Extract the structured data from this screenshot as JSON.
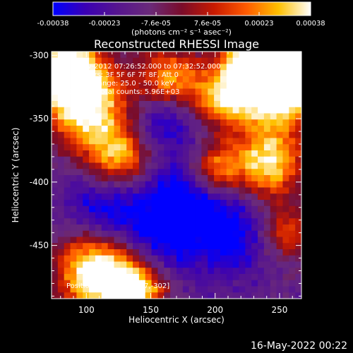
{
  "chart_data": {
    "type": "heatmap",
    "title": "Reconstructed RHESSI Image",
    "xlabel": "Heliocentric X (arcsec)",
    "ylabel": "Heliocentric Y (arcsec)",
    "xlim": [
      73,
      267
    ],
    "ylim": [
      -492,
      -297
    ],
    "x_ticks": [
      100,
      150,
      200,
      250
    ],
    "y_ticks": [
      -300,
      -350,
      -400,
      -450
    ],
    "colorbar": {
      "ticks": [
        "-0.00038",
        "-0.00023",
        "-7.6e-05",
        "7.6e-05",
        "0.00023",
        "0.00038"
      ],
      "range": [
        -0.00038,
        0.00038
      ],
      "unit_label": "(photons cm⁻² s⁻¹ asec⁻²)"
    },
    "annotations": [
      "13-Nov-2012 07:26:52.000 to 07:32:52.000",
      "Detectors: 3F 5F 6F 7F 8F, Att 0",
      "Energy Range: 25.0 - 50.0 keV",
      "Clean     Total counts: 5.96E+03"
    ],
    "peak_label": "Position of Peak = [237,-302]",
    "peak": [
      237,
      -302
    ],
    "timestamp": "16-May-2022 00:22",
    "bright_regions": [
      {
        "x": 237,
        "y": -305,
        "strength": 1.0,
        "radius": 20
      },
      {
        "x": 250,
        "y": -325,
        "strength": 0.8,
        "radius": 22
      },
      {
        "x": 85,
        "y": -310,
        "strength": 0.8,
        "radius": 18
      },
      {
        "x": 100,
        "y": -340,
        "strength": 0.7,
        "radius": 22
      },
      {
        "x": 110,
        "y": -470,
        "strength": 0.85,
        "radius": 22
      },
      {
        "x": 140,
        "y": -485,
        "strength": 0.65,
        "radius": 16
      },
      {
        "x": 240,
        "y": -385,
        "strength": 0.65,
        "radius": 20
      },
      {
        "x": 165,
        "y": -320,
        "strength": 0.55,
        "radius": 18
      },
      {
        "x": 125,
        "y": -380,
        "strength": 0.55,
        "radius": 18
      },
      {
        "x": 205,
        "y": -335,
        "strength": 0.45,
        "radius": 16
      },
      {
        "x": 200,
        "y": -390,
        "strength": 0.45,
        "radius": 14
      },
      {
        "x": 255,
        "y": -440,
        "strength": 0.4,
        "radius": 16
      }
    ],
    "dim_regions": [
      {
        "x": 160,
        "y": -350,
        "strength": -0.35,
        "radius": 18
      },
      {
        "x": 150,
        "y": -445,
        "strength": -0.35,
        "radius": 26
      },
      {
        "x": 215,
        "y": -440,
        "strength": -0.35,
        "radius": 24
      },
      {
        "x": 110,
        "y": -420,
        "strength": -0.3,
        "radius": 20
      },
      {
        "x": 175,
        "y": -410,
        "strength": -0.3,
        "radius": 22
      }
    ],
    "colormap": [
      "#0000ff",
      "#3a00b4",
      "#56158f",
      "#6a2a7a",
      "#7a0c2a",
      "#c81a00",
      "#ff5a00",
      "#ffc000",
      "#ffffff"
    ]
  }
}
